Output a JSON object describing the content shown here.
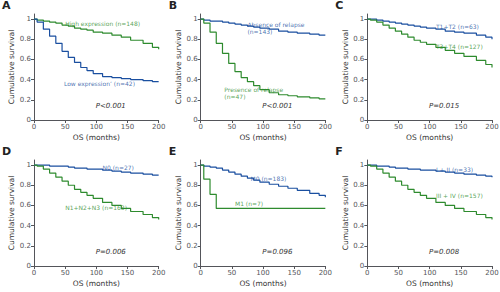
{
  "chart_data": [
    {
      "type": "step",
      "title": "A",
      "xlabel": "OS (months)",
      "ylabel": "Cumulative survival",
      "xlim": [
        0,
        200
      ],
      "ylim": [
        0,
        1.05
      ],
      "xticks": [
        0,
        50,
        100,
        150,
        200
      ],
      "yticks": [
        0,
        0.2,
        0.4,
        0.6,
        0.8,
        1
      ],
      "grid": false,
      "annotations": [
        {
          "text": "P<0.001"
        },
        {
          "text": "High expression (n=148)",
          "x": 50,
          "y": 0.955,
          "color": "#2e8b2e"
        },
        {
          "text": "Low expression’ (n=42)",
          "x": 48,
          "y": 0.36,
          "color": "#1a4fa0"
        }
      ],
      "series": [
        {
          "color": "#2e8b2e",
          "x": [
            0,
            5,
            15,
            25,
            35,
            45,
            55,
            65,
            75,
            85,
            95,
            110,
            125,
            140,
            155,
            175,
            190,
            200
          ],
          "values": [
            1.0,
            0.99,
            0.98,
            0.97,
            0.96,
            0.94,
            0.93,
            0.91,
            0.9,
            0.89,
            0.87,
            0.86,
            0.84,
            0.82,
            0.79,
            0.76,
            0.72,
            0.7
          ]
        },
        {
          "color": "#1a4fa0",
          "x": [
            0,
            5,
            15,
            25,
            35,
            45,
            55,
            65,
            75,
            85,
            95,
            110,
            125,
            140,
            155,
            175,
            190,
            200
          ],
          "values": [
            1.0,
            0.97,
            0.9,
            0.83,
            0.76,
            0.68,
            0.62,
            0.57,
            0.52,
            0.49,
            0.46,
            0.43,
            0.42,
            0.41,
            0.4,
            0.39,
            0.38,
            0.38
          ]
        }
      ]
    },
    {
      "type": "step",
      "title": "B",
      "xlabel": "OS (months)",
      "ylabel": "Cumulative survival",
      "xlim": [
        0,
        200
      ],
      "ylim": [
        0,
        1.05
      ],
      "xticks": [
        0,
        50,
        100,
        150,
        200
      ],
      "yticks": [
        0,
        0.2,
        0.4,
        0.6,
        0.8,
        1
      ],
      "grid": false,
      "annotations": [
        {
          "text": "P<0.001"
        },
        {
          "text": "Absence of relapse",
          "x": 75,
          "y": 0.95,
          "color": "#1a4fa0"
        },
        {
          "text": "(n=143)",
          "x": 75,
          "y": 0.88,
          "color": "#1a4fa0"
        },
        {
          "text": "Presence of relapse",
          "x": 38,
          "y": 0.3,
          "color": "#2e8b2e"
        },
        {
          "text": "(n=47)",
          "x": 38,
          "y": 0.23,
          "color": "#2e8b2e"
        }
      ],
      "series": [
        {
          "color": "#1a4fa0",
          "x": [
            0,
            5,
            15,
            25,
            35,
            45,
            55,
            65,
            75,
            85,
            95,
            110,
            125,
            140,
            155,
            175,
            190,
            200
          ],
          "values": [
            1.0,
            0.99,
            0.98,
            0.98,
            0.97,
            0.96,
            0.95,
            0.94,
            0.93,
            0.92,
            0.91,
            0.9,
            0.88,
            0.87,
            0.86,
            0.85,
            0.84,
            0.84
          ]
        },
        {
          "color": "#2e8b2e",
          "x": [
            0,
            5,
            15,
            25,
            35,
            45,
            55,
            65,
            75,
            85,
            95,
            110,
            125,
            140,
            155,
            175,
            190,
            200
          ],
          "values": [
            1.0,
            0.96,
            0.87,
            0.76,
            0.66,
            0.56,
            0.48,
            0.42,
            0.38,
            0.34,
            0.3,
            0.27,
            0.25,
            0.24,
            0.23,
            0.22,
            0.21,
            0.21
          ]
        }
      ]
    },
    {
      "type": "step",
      "title": "C",
      "xlabel": "OS (months)",
      "ylabel": "Cumulative survival",
      "xlim": [
        0,
        200
      ],
      "ylim": [
        0,
        1.05
      ],
      "xticks": [
        0,
        50,
        100,
        150,
        200
      ],
      "yticks": [
        0,
        0.2,
        0.4,
        0.6,
        0.8,
        1
      ],
      "grid": false,
      "annotations": [
        {
          "text": "P=0.015"
        },
        {
          "text": "T1+T2 (n=63)",
          "x": 110,
          "y": 0.93,
          "color": "#1a4fa0"
        },
        {
          "text": "T3+T4 (n=127)",
          "x": 110,
          "y": 0.73,
          "color": "#2e8b2e"
        }
      ],
      "series": [
        {
          "color": "#1a4fa0",
          "x": [
            0,
            5,
            15,
            25,
            35,
            45,
            55,
            65,
            75,
            85,
            95,
            110,
            125,
            140,
            155,
            175,
            190,
            200
          ],
          "values": [
            1.0,
            1.0,
            0.99,
            0.98,
            0.97,
            0.96,
            0.95,
            0.94,
            0.93,
            0.92,
            0.91,
            0.9,
            0.88,
            0.87,
            0.86,
            0.84,
            0.82,
            0.8
          ]
        },
        {
          "color": "#2e8b2e",
          "x": [
            0,
            5,
            15,
            25,
            35,
            45,
            55,
            65,
            75,
            85,
            95,
            110,
            125,
            140,
            155,
            175,
            190,
            200
          ],
          "values": [
            1.0,
            0.99,
            0.97,
            0.94,
            0.91,
            0.88,
            0.85,
            0.82,
            0.79,
            0.77,
            0.75,
            0.72,
            0.69,
            0.66,
            0.63,
            0.59,
            0.55,
            0.52
          ]
        }
      ]
    },
    {
      "type": "step",
      "title": "D",
      "xlabel": "OS (months)",
      "ylabel": "Cumulative survival",
      "xlim": [
        0,
        200
      ],
      "ylim": [
        0,
        1.05
      ],
      "xticks": [
        0,
        50,
        100,
        150,
        200
      ],
      "yticks": [
        0,
        0.2,
        0.4,
        0.6,
        0.8,
        1
      ],
      "grid": false,
      "annotations": [
        {
          "text": "P=0.006"
        },
        {
          "text": "N0 (n=27)",
          "x": 110,
          "y": 0.98,
          "color": "#1a4fa0"
        },
        {
          "text": "N1+N2+N3 (n=163)",
          "x": 50,
          "y": 0.58,
          "color": "#2e8b2e"
        }
      ],
      "series": [
        {
          "color": "#1a4fa0",
          "x": [
            0,
            5,
            15,
            25,
            35,
            45,
            55,
            65,
            75,
            85,
            95,
            110,
            125,
            140,
            155,
            175,
            190,
            200
          ],
          "values": [
            1.0,
            1.0,
            1.0,
            0.99,
            0.99,
            0.99,
            0.98,
            0.97,
            0.97,
            0.96,
            0.96,
            0.95,
            0.94,
            0.93,
            0.92,
            0.91,
            0.9,
            0.9
          ]
        },
        {
          "color": "#2e8b2e",
          "x": [
            0,
            5,
            15,
            25,
            35,
            45,
            55,
            65,
            75,
            85,
            95,
            110,
            125,
            140,
            155,
            175,
            190,
            200
          ],
          "values": [
            1.0,
            0.99,
            0.96,
            0.92,
            0.88,
            0.84,
            0.8,
            0.76,
            0.73,
            0.7,
            0.67,
            0.63,
            0.6,
            0.57,
            0.54,
            0.51,
            0.48,
            0.46
          ]
        }
      ]
    },
    {
      "type": "step",
      "title": "E",
      "xlabel": "OS (months)",
      "ylabel": "Cumulative survival",
      "xlim": [
        0,
        200
      ],
      "ylim": [
        0,
        1.05
      ],
      "xticks": [
        0,
        50,
        100,
        150,
        200
      ],
      "yticks": [
        0,
        0.2,
        0.4,
        0.6,
        0.8,
        1
      ],
      "grid": false,
      "annotations": [
        {
          "text": "P=0.096"
        },
        {
          "text": "M0 (n=183)",
          "x": 80,
          "y": 0.87,
          "color": "#1a4fa0"
        },
        {
          "text": "M1 (n=7)",
          "x": 55,
          "y": 0.62,
          "color": "#2e8b2e"
        }
      ],
      "series": [
        {
          "color": "#1a4fa0",
          "x": [
            0,
            5,
            15,
            25,
            35,
            45,
            55,
            65,
            75,
            85,
            95,
            110,
            125,
            140,
            155,
            175,
            190,
            200
          ],
          "values": [
            1.0,
            0.99,
            0.98,
            0.97,
            0.95,
            0.93,
            0.91,
            0.89,
            0.87,
            0.85,
            0.83,
            0.81,
            0.79,
            0.77,
            0.75,
            0.72,
            0.7,
            0.68
          ]
        },
        {
          "color": "#2e8b2e",
          "x": [
            0,
            5,
            15,
            25,
            35,
            45,
            200
          ],
          "values": [
            1.0,
            0.86,
            0.71,
            0.57,
            0.57,
            0.57,
            0.57
          ]
        }
      ]
    },
    {
      "type": "step",
      "title": "F",
      "xlabel": "OS (months)",
      "ylabel": "Cumulative survival",
      "xlim": [
        0,
        200
      ],
      "ylim": [
        0,
        1.05
      ],
      "xticks": [
        0,
        50,
        100,
        150,
        200
      ],
      "yticks": [
        0,
        0.2,
        0.4,
        0.6,
        0.8,
        1
      ],
      "grid": false,
      "annotations": [
        {
          "text": "P=0.008"
        },
        {
          "text": "I + II (n=33)",
          "x": 110,
          "y": 0.96,
          "color": "#1a4fa0"
        },
        {
          "text": "III + IV (n=157)",
          "x": 110,
          "y": 0.7,
          "color": "#2e8b2e"
        }
      ],
      "series": [
        {
          "color": "#1a4fa0",
          "x": [
            0,
            5,
            15,
            25,
            35,
            45,
            55,
            65,
            75,
            85,
            95,
            110,
            125,
            140,
            155,
            175,
            190,
            200
          ],
          "values": [
            1.0,
            1.0,
            0.99,
            0.99,
            0.98,
            0.97,
            0.97,
            0.96,
            0.96,
            0.95,
            0.95,
            0.94,
            0.93,
            0.92,
            0.91,
            0.9,
            0.89,
            0.88
          ]
        },
        {
          "color": "#2e8b2e",
          "x": [
            0,
            5,
            15,
            25,
            35,
            45,
            55,
            65,
            75,
            85,
            95,
            110,
            125,
            140,
            155,
            175,
            190,
            200
          ],
          "values": [
            1.0,
            0.99,
            0.96,
            0.92,
            0.88,
            0.84,
            0.8,
            0.76,
            0.73,
            0.7,
            0.67,
            0.63,
            0.6,
            0.57,
            0.54,
            0.51,
            0.48,
            0.46
          ]
        }
      ]
    }
  ]
}
